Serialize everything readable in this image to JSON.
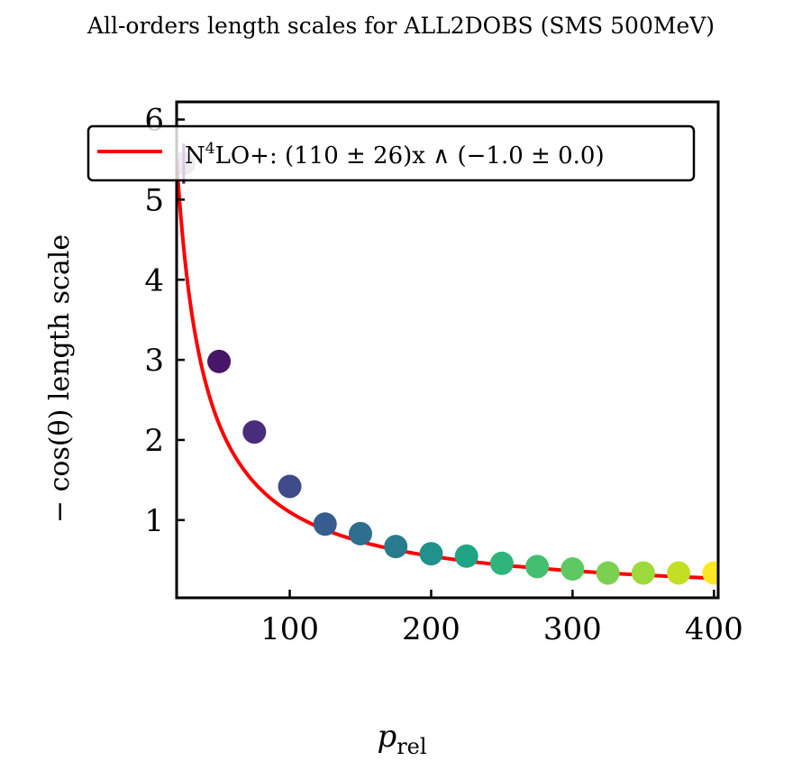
{
  "chart_data": {
    "type": "scatter",
    "title": "All-orders length scales for ALL2DOBS (SMS 500MeV)",
    "xlabel": "p",
    "xlabel_sub": "rel",
    "ylabel": "− cos(θ) length scale",
    "xlim": [
      20,
      403
    ],
    "ylim": [
      0.03,
      6.22
    ],
    "xticks": [
      100,
      200,
      300,
      400
    ],
    "yticks": [
      1,
      2,
      3,
      4,
      5,
      6
    ],
    "grid": false,
    "legend_position": "top",
    "legend": {
      "label_prefix": "N",
      "label_sup": "4",
      "label_rest": "LO+:  (110 ± 26)x ∧ (−1.0 ± 0.0)"
    },
    "fit": {
      "name": "N4LO+",
      "color": "#ff0000",
      "coefficient": 110,
      "exponent": -1.0
    },
    "points": [
      {
        "x": 25,
        "y": 5.45,
        "err": 0.25,
        "color": "#440154"
      },
      {
        "x": 50,
        "y": 2.98,
        "err": 0.0,
        "color": "#481668"
      },
      {
        "x": 75,
        "y": 2.1,
        "err": 0.1,
        "color": "#472d7b"
      },
      {
        "x": 100,
        "y": 1.42,
        "err": 0.0,
        "color": "#3e4a89"
      },
      {
        "x": 125,
        "y": 0.95,
        "err": 0.0,
        "color": "#365d8d"
      },
      {
        "x": 150,
        "y": 0.83,
        "err": 0.0,
        "color": "#2e6e8e"
      },
      {
        "x": 175,
        "y": 0.67,
        "err": 0.0,
        "color": "#287c8e"
      },
      {
        "x": 200,
        "y": 0.58,
        "err": 0.0,
        "color": "#21918c"
      },
      {
        "x": 225,
        "y": 0.55,
        "err": 0.0,
        "color": "#20a486"
      },
      {
        "x": 250,
        "y": 0.46,
        "err": 0.0,
        "color": "#2fb47c"
      },
      {
        "x": 275,
        "y": 0.42,
        "err": 0.0,
        "color": "#44bf70"
      },
      {
        "x": 300,
        "y": 0.39,
        "err": 0.0,
        "color": "#5ec962"
      },
      {
        "x": 325,
        "y": 0.34,
        "err": 0.0,
        "color": "#7ad151"
      },
      {
        "x": 350,
        "y": 0.34,
        "err": 0.0,
        "color": "#9bd93c"
      },
      {
        "x": 375,
        "y": 0.34,
        "err": 0.0,
        "color": "#c2df23"
      },
      {
        "x": 400,
        "y": 0.34,
        "err": 0.0,
        "color": "#fde725"
      }
    ]
  }
}
